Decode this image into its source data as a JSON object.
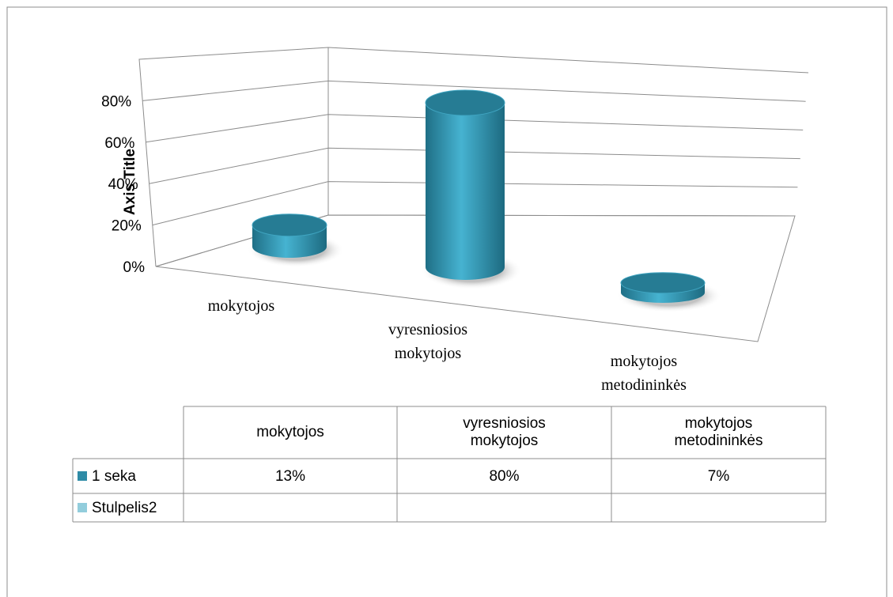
{
  "chart_data": {
    "type": "cylinder3d",
    "y_axis_title": "Axis Title",
    "categories": [
      "mokytojos",
      "vyresniosios mokytojos",
      "mokytojos metodininkės"
    ],
    "series": [
      {
        "name": "1 seka",
        "color": "#2e8ba6",
        "values": [
          13,
          80,
          7
        ],
        "value_labels": [
          "13%",
          "80%",
          "7%"
        ]
      },
      {
        "name": "Stulpelis2",
        "color": "#92cddc",
        "values": [
          null,
          null,
          null
        ]
      }
    ],
    "ylim": [
      0,
      100
    ],
    "yticks": [
      {
        "value": 0,
        "label": "0%"
      },
      {
        "value": 20,
        "label": "20%"
      },
      {
        "value": 40,
        "label": "40%"
      },
      {
        "value": 60,
        "label": "60%"
      },
      {
        "value": 80,
        "label": "80%"
      }
    ],
    "grid": true,
    "data_table": true
  }
}
